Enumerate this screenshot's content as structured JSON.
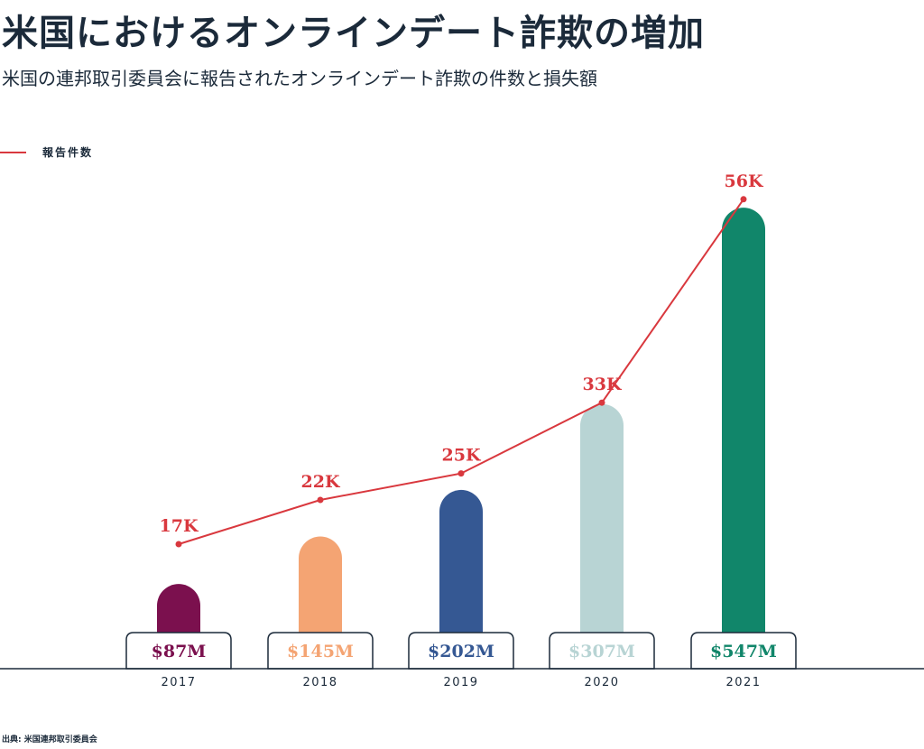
{
  "chart_data": {
    "type": "bar+line",
    "title": "米国におけるオンラインデート詐欺の増加",
    "subtitle": "米国の連邦取引委員会に報告されたオンラインデート詐欺の件数と損失額",
    "categories": [
      "2017",
      "2018",
      "2019",
      "2020",
      "2021"
    ],
    "bars": {
      "values": [
        87,
        145,
        202,
        307,
        547
      ],
      "labels": [
        "$87M",
        "$145M",
        "$202M",
        "$307M",
        "$547M"
      ],
      "colors": [
        "#7b104e",
        "#f4a473",
        "#355893",
        "#b8d4d4",
        "#11866a"
      ]
    },
    "series": [
      {
        "name": "報告件数",
        "values": [
          17,
          22,
          25,
          33,
          56
        ],
        "labels": [
          "17K",
          "22K",
          "25K",
          "33K",
          "56K"
        ],
        "color": "#d9383e"
      }
    ],
    "legend": "top-left",
    "grid": false,
    "source": "出典: 米国連邦取引委員会"
  }
}
